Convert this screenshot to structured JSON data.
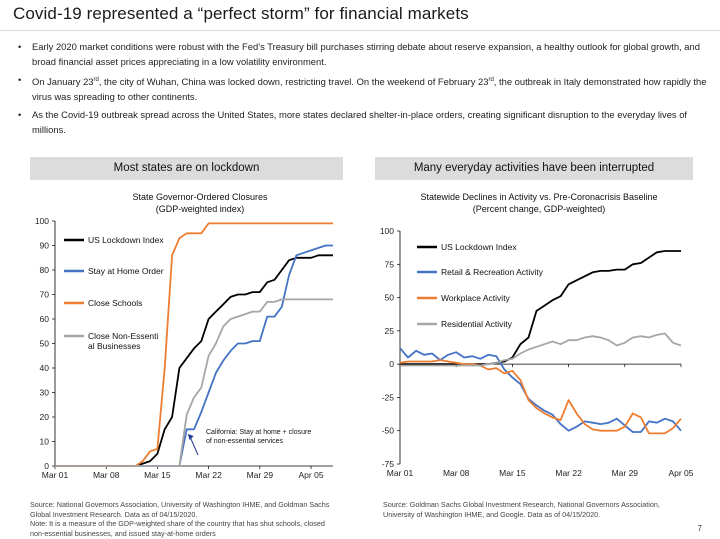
{
  "page": {
    "title": "Covid-19 represented a “perfect storm” for financial markets",
    "bullets": [
      {
        "text": "Early 2020 market conditions were robust with the Fed’s Treasury bill purchases stirring debate about reserve expansion, a healthy outlook for global growth, and broad financial asset prices appreciating in a low volatility environment."
      },
      {
        "before": "On January 23",
        "sup": "rd",
        "middle": ", the city of Wuhan, China was locked down, restricting travel. On the weekend of February 23",
        "sup2": "rd",
        "after": ", the outbreak in Italy demonstrated how rapidly the virus was spreading to other continents."
      },
      {
        "text": "As the Covid-19 outbreak spread across the United States, more states declared shelter-in-place orders, creating significant disruption to the everyday lives of millions."
      }
    ],
    "left_panel_header": "Most states are on lockdown",
    "right_panel_header": "Many everyday activities have been interrupted",
    "left_source": "Source: National Governors Association, University of Washington IHME, and Goldman Sachs Global Investment Research. Data as of 04/15/2020.",
    "left_note": "Note: It is a measure of the GDP-weighted share of the country that has shut schools, closed non-essential businesses, and issued stay-at-home orders",
    "right_source": "Source: Goldman Sachs Global Investment Research, National Governors Association, University of Washington IHME, and Google. Data as of 04/15/2020.",
    "page_number": "7"
  },
  "chart_data": [
    {
      "type": "line",
      "title": "State Governor-Ordered Closures",
      "subtitle": "(GDP-weighted index)",
      "x_ticks": [
        "Mar 01",
        "Mar 08",
        "Mar 15",
        "Mar 22",
        "Mar 29",
        "Apr 05"
      ],
      "x": [
        "Mar 01",
        "Mar 02",
        "Mar 03",
        "Mar 04",
        "Mar 05",
        "Mar 06",
        "Mar 07",
        "Mar 08",
        "Mar 09",
        "Mar 10",
        "Mar 11",
        "Mar 12",
        "Mar 13",
        "Mar 14",
        "Mar 15",
        "Mar 16",
        "Mar 17",
        "Mar 18",
        "Mar 19",
        "Mar 20",
        "Mar 21",
        "Mar 22",
        "Mar 23",
        "Mar 24",
        "Mar 25",
        "Mar 26",
        "Mar 27",
        "Mar 28",
        "Mar 29",
        "Mar 30",
        "Mar 31",
        "Apr 01",
        "Apr 02",
        "Apr 03",
        "Apr 04",
        "Apr 05",
        "Apr 06",
        "Apr 07",
        "Apr 08"
      ],
      "ylim": [
        0,
        100
      ],
      "y_ticks": [
        0,
        10,
        20,
        30,
        40,
        50,
        60,
        70,
        80,
        90,
        100
      ],
      "legend_position": "left",
      "series": [
        {
          "name": "US Lockdown Index",
          "color": "#000000",
          "values": [
            0,
            0,
            0,
            0,
            0,
            0,
            0,
            0,
            0,
            0,
            0,
            0,
            1,
            2,
            5,
            15,
            20,
            40,
            44,
            48,
            51,
            60,
            63,
            66,
            69,
            70,
            70,
            71,
            71,
            75,
            76,
            80,
            84,
            85,
            85,
            85,
            86,
            86,
            86
          ]
        },
        {
          "name": "Stay at Home Order",
          "color": "#4472c4",
          "values": [
            0,
            0,
            0,
            0,
            0,
            0,
            0,
            0,
            0,
            0,
            0,
            0,
            0,
            0,
            0,
            0,
            0,
            0,
            15,
            15,
            22,
            30,
            38,
            43,
            47,
            50,
            50,
            51,
            51,
            61,
            61,
            65,
            78,
            86,
            87,
            88,
            89,
            90,
            90
          ]
        },
        {
          "name": "Close Schools",
          "color": "#ed7d31",
          "values": [
            0,
            0,
            0,
            0,
            0,
            0,
            0,
            0,
            0,
            0,
            0,
            0,
            2,
            6,
            7,
            40,
            86,
            93,
            95,
            95,
            95,
            99,
            99,
            99,
            99,
            99,
            99,
            99,
            99,
            99,
            99,
            99,
            99,
            99,
            99,
            99,
            99,
            99,
            99
          ]
        },
        {
          "name": "Close Non-Essential Businesses",
          "color": "#a6a6a6",
          "values": [
            0,
            0,
            0,
            0,
            0,
            0,
            0,
            0,
            0,
            0,
            0,
            0,
            0,
            0,
            0,
            0,
            0,
            0,
            21,
            28,
            32,
            45,
            50,
            57,
            60,
            61,
            62,
            63,
            63,
            67,
            67,
            68,
            68,
            68,
            68,
            68,
            68,
            68,
            68
          ]
        }
      ],
      "annotation": "California: Stay at home + closure of non-essential services"
    },
    {
      "type": "line",
      "title": "Statewide Declines in Activity vs. Pre-Coronacrisis Baseline",
      "subtitle": "(Percent change, GDP-weighted)",
      "x_ticks": [
        "Mar 01",
        "Mar 08",
        "Mar 15",
        "Mar 22",
        "Mar 29",
        "Apr 05"
      ],
      "x": [
        "Mar 01",
        "Mar 02",
        "Mar 03",
        "Mar 04",
        "Mar 05",
        "Mar 06",
        "Mar 07",
        "Mar 08",
        "Mar 09",
        "Mar 10",
        "Mar 11",
        "Mar 12",
        "Mar 13",
        "Mar 14",
        "Mar 15",
        "Mar 16",
        "Mar 17",
        "Mar 18",
        "Mar 19",
        "Mar 20",
        "Mar 21",
        "Mar 22",
        "Mar 23",
        "Mar 24",
        "Mar 25",
        "Mar 26",
        "Mar 27",
        "Mar 28",
        "Mar 29",
        "Mar 30",
        "Mar 31",
        "Apr 01",
        "Apr 02",
        "Apr 03",
        "Apr 04",
        "Apr 05"
      ],
      "ylim": [
        -75,
        100
      ],
      "y_ticks": [
        -75,
        -50,
        -25,
        0,
        25,
        50,
        75,
        100
      ],
      "legend_position": "top-left",
      "series": [
        {
          "name": "US Lockdown Index",
          "color": "#000000",
          "values": [
            0,
            0,
            0,
            0,
            0,
            0,
            0,
            0,
            0,
            0,
            0,
            0,
            1,
            2,
            5,
            15,
            20,
            40,
            44,
            48,
            51,
            60,
            63,
            66,
            69,
            70,
            70,
            71,
            71,
            75,
            76,
            80,
            84,
            85,
            85,
            85
          ]
        },
        {
          "name": "Retail & Recreation Activity",
          "color": "#4472c4",
          "values": [
            12,
            5,
            10,
            7,
            8,
            3,
            7,
            9,
            5,
            6,
            4,
            7,
            6,
            -4,
            -10,
            -15,
            -26,
            -31,
            -35,
            -38,
            -45,
            -50,
            -47,
            -43,
            -44,
            -45,
            -44,
            -41,
            -46,
            -51,
            -51,
            -43,
            -44,
            -41,
            -43,
            -50
          ]
        },
        {
          "name": "Workplace Activity",
          "color": "#ed7d31",
          "values": [
            1,
            2,
            2,
            2,
            2,
            3,
            2,
            1,
            0,
            0,
            -1,
            -4,
            -3,
            -7,
            -5,
            -12,
            -27,
            -33,
            -37,
            -40,
            -42,
            -27,
            -37,
            -45,
            -49,
            -50,
            -50,
            -50,
            -47,
            -37,
            -40,
            -52,
            -52,
            -52,
            -48,
            -41
          ]
        },
        {
          "name": "Residential Activity",
          "color": "#a6a6a6",
          "values": [
            -1,
            -1,
            -1,
            -1,
            -1,
            -1,
            -1,
            -1,
            -1,
            -1,
            -1,
            0,
            1,
            3,
            4,
            8,
            11,
            13,
            15,
            17,
            15,
            18,
            18,
            20,
            21,
            20,
            18,
            14,
            16,
            20,
            21,
            20,
            22,
            23,
            16,
            14
          ]
        }
      ]
    }
  ]
}
